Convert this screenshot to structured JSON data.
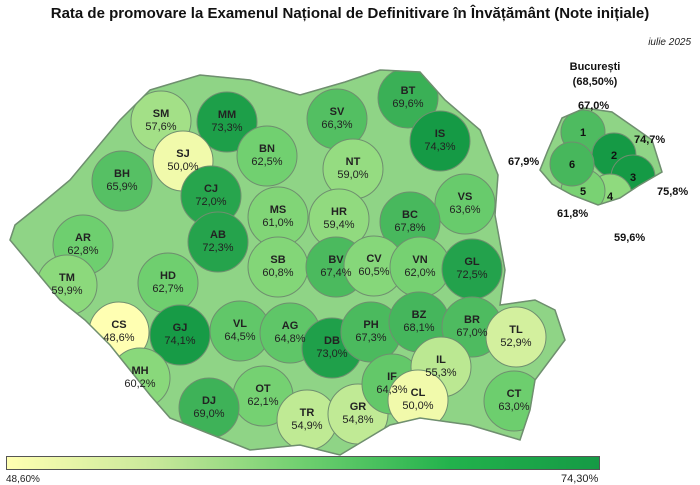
{
  "title": "Rata de promovare la Examenul Național de Definitivare în Învățământ (Note inițiale)",
  "date": "iulie 2025",
  "colors": {
    "low": "#ffffb2",
    "high": "#159a45",
    "border": "#6f8f6f"
  },
  "legend": {
    "min_label": "48,60%",
    "max_label": "74,30%",
    "min": 48.6,
    "max": 74.3
  },
  "counties": [
    {
      "code": "SM",
      "value": "57,6%",
      "v": 57.6
    },
    {
      "code": "MM",
      "value": "73,3%",
      "v": 73.3
    },
    {
      "code": "BT",
      "value": "69,6%",
      "v": 69.6
    },
    {
      "code": "SV",
      "value": "66,3%",
      "v": 66.3
    },
    {
      "code": "SJ",
      "value": "50,0%",
      "v": 50.0
    },
    {
      "code": "BN",
      "value": "62,5%",
      "v": 62.5
    },
    {
      "code": "IS",
      "value": "74,3%",
      "v": 74.3
    },
    {
      "code": "BH",
      "value": "65,9%",
      "v": 65.9
    },
    {
      "code": "CJ",
      "value": "72,0%",
      "v": 72.0
    },
    {
      "code": "NT",
      "value": "59,0%",
      "v": 59.0
    },
    {
      "code": "VS",
      "value": "63,6%",
      "v": 63.6
    },
    {
      "code": "AR",
      "value": "62,8%",
      "v": 62.8
    },
    {
      "code": "MS",
      "value": "61,0%",
      "v": 61.0
    },
    {
      "code": "HR",
      "value": "59,4%",
      "v": 59.4
    },
    {
      "code": "BC",
      "value": "67,8%",
      "v": 67.8
    },
    {
      "code": "AB",
      "value": "72,3%",
      "v": 72.3
    },
    {
      "code": "TM",
      "value": "59,9%",
      "v": 59.9
    },
    {
      "code": "HD",
      "value": "62,7%",
      "v": 62.7
    },
    {
      "code": "SB",
      "value": "60,8%",
      "v": 60.8
    },
    {
      "code": "BV",
      "value": "67,4%",
      "v": 67.4
    },
    {
      "code": "CV",
      "value": "60,5%",
      "v": 60.5
    },
    {
      "code": "VN",
      "value": "62,0%",
      "v": 62.0
    },
    {
      "code": "GL",
      "value": "72,5%",
      "v": 72.5
    },
    {
      "code": "CS",
      "value": "48,6%",
      "v": 48.6
    },
    {
      "code": "GJ",
      "value": "74,1%",
      "v": 74.1
    },
    {
      "code": "VL",
      "value": "64,5%",
      "v": 64.5
    },
    {
      "code": "AG",
      "value": "64,8%",
      "v": 64.8
    },
    {
      "code": "DB",
      "value": "73,0%",
      "v": 73.0
    },
    {
      "code": "PH",
      "value": "67,3%",
      "v": 67.3
    },
    {
      "code": "BZ",
      "value": "68,1%",
      "v": 68.1
    },
    {
      "code": "BR",
      "value": "67,0%",
      "v": 67.0
    },
    {
      "code": "TL",
      "value": "52,9%",
      "v": 52.9
    },
    {
      "code": "MH",
      "value": "60,2%",
      "v": 60.2
    },
    {
      "code": "OT",
      "value": "62,1%",
      "v": 62.1
    },
    {
      "code": "DJ",
      "value": "69,0%",
      "v": 69.0
    },
    {
      "code": "TR",
      "value": "54,9%",
      "v": 54.9
    },
    {
      "code": "GR",
      "value": "54,8%",
      "v": 54.8
    },
    {
      "code": "IF",
      "value": "64,3%",
      "v": 64.3
    },
    {
      "code": "IL",
      "value": "55,3%",
      "v": 55.3
    },
    {
      "code": "CL",
      "value": "50,0%",
      "v": 50.0
    },
    {
      "code": "CT",
      "value": "63,0%",
      "v": 63.0
    }
  ],
  "bucharest": {
    "title": "București",
    "total": "(68,50%)",
    "sectors": [
      {
        "label": "1",
        "value": "67,0%",
        "v": 67.0
      },
      {
        "label": "2",
        "value": "74,7%",
        "v": 74.7
      },
      {
        "label": "3",
        "value": "75,8%",
        "v": 75.8
      },
      {
        "label": "4",
        "value": "59,6%",
        "v": 59.6
      },
      {
        "label": "5",
        "value": "61,8%",
        "v": 61.8
      },
      {
        "label": "6",
        "value": "67,9%",
        "v": 67.9
      }
    ]
  }
}
